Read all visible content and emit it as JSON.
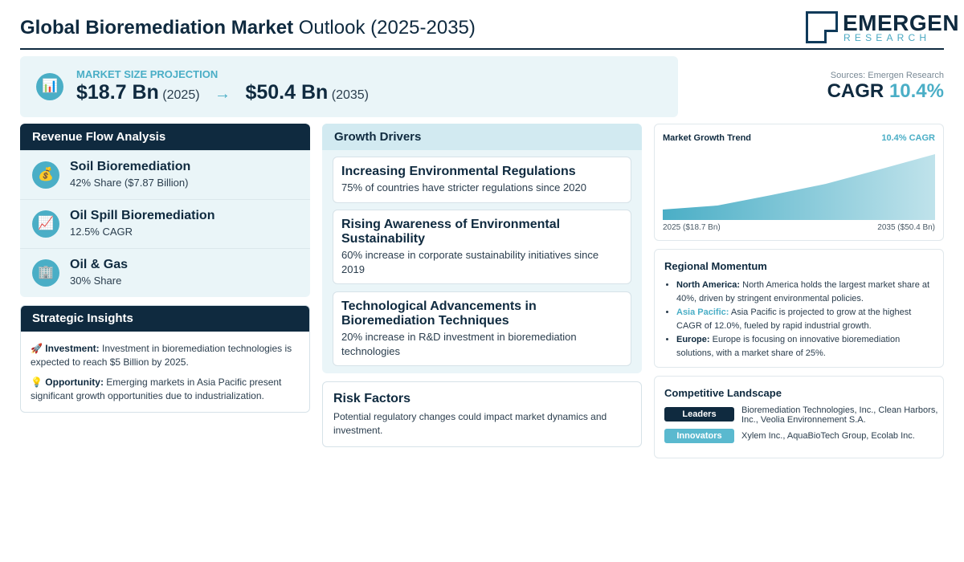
{
  "header": {
    "title_bold": "Global Bioremediation Market",
    "title_rest": "Outlook (2025-2035)",
    "logo_main": "EMERGEN",
    "logo_sub": "RESEARCH"
  },
  "projection": {
    "icon": "bar-chart-icon",
    "label": "MARKET SIZE PROJECTION",
    "start_value": "$18.7 Bn",
    "start_year": "(2025)",
    "arrow": "→",
    "end_value": "$50.4 Bn",
    "end_year": "(2035)"
  },
  "sources": {
    "text": "Sources: Emergen Research",
    "cagr_label": "CAGR",
    "cagr_value": "10.4%"
  },
  "revenue_flow": {
    "title": "Revenue Flow Analysis",
    "items": [
      {
        "icon": "money-bag-icon",
        "glyph": "💰",
        "name": "Soil Bioremediation",
        "detail": "42% Share ($7.87 Billion)"
      },
      {
        "icon": "trend-chart-icon",
        "glyph": "📈",
        "name": "Oil Spill Bioremediation",
        "detail": "12.5% CAGR"
      },
      {
        "icon": "building-icon",
        "glyph": "🏢",
        "name": "Oil & Gas",
        "detail": "30% Share"
      }
    ]
  },
  "strategic_insights": {
    "title": "Strategic Insights",
    "items": [
      {
        "icon": "rocket-icon",
        "glyph": "🚀",
        "label": "Investment:",
        "text": "Investment in bioremediation technologies is expected to reach $5 Billion by 2025."
      },
      {
        "icon": "lightbulb-icon",
        "glyph": "💡",
        "label": "Opportunity:",
        "text": "Emerging markets in Asia Pacific present significant growth opportunities due to industrialization."
      }
    ]
  },
  "growth_drivers": {
    "title": "Growth Drivers",
    "items": [
      {
        "title": "Increasing Environmental Regulations",
        "text": "75% of countries have stricter regulations since 2020"
      },
      {
        "title": "Rising Awareness of Environmental Sustainability",
        "text": "60% increase in corporate sustainability initiatives since 2019"
      },
      {
        "title": "Technological Advancements in Bioremediation Techniques",
        "text": "20% increase in R&D investment in bioremediation technologies"
      }
    ]
  },
  "risk_factors": {
    "title": "Risk Factors",
    "text": "Potential regulatory changes could impact market dynamics and investment."
  },
  "market_trend": {
    "title": "Market Growth Trend",
    "cagr_label": "10.4% CAGR",
    "start_label": "2025 ($18.7 Bn)",
    "end_label": "2035 ($50.4 Bn)",
    "fill_color": "#4aaec6"
  },
  "regional_momentum": {
    "title": "Regional Momentum",
    "items": [
      {
        "name": "North America:",
        "accent": false,
        "text": "North America holds the largest market share at 40%, driven by stringent environmental policies."
      },
      {
        "name": "Asia Pacific:",
        "accent": true,
        "text": "Asia Pacific is projected to grow at the highest CAGR of 12.0%, fueled by rapid industrial growth."
      },
      {
        "name": "Europe:",
        "accent": false,
        "text": "Europe is focusing on innovative bioremediation solutions, with a market share of 25%."
      }
    ]
  },
  "competitive_landscape": {
    "title": "Competitive Landscape",
    "leaders_label": "Leaders",
    "leaders_text": "Bioremediation Technologies, Inc., Clean Harbors, Inc., Veolia Environnement S.A.",
    "innovators_label": "Innovators",
    "innovators_text": "Xylem Inc., AquaBioTech Group, Ecolab Inc."
  },
  "colors": {
    "navy": "#0f2a3f",
    "accent": "#4aaec6",
    "panel": "#eaf5f8"
  }
}
